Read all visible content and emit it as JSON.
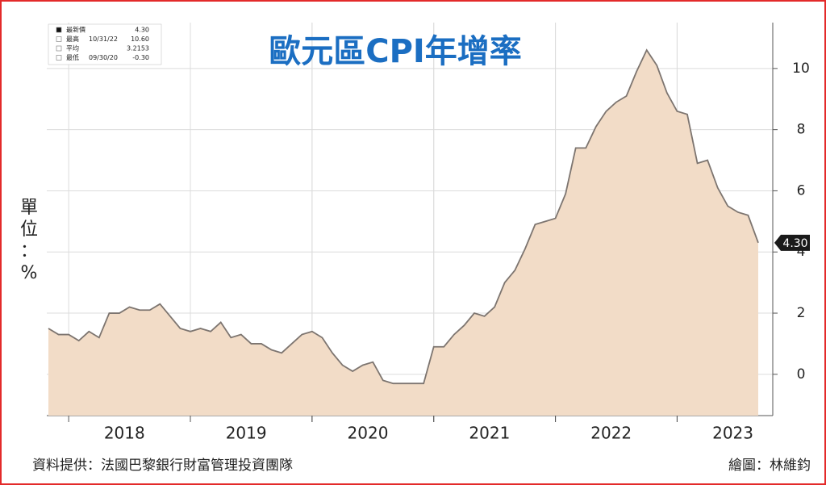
{
  "chart_data": {
    "type": "area",
    "title": "歐元區CPI年增率",
    "y_label": [
      "單",
      "位",
      "：",
      "%"
    ],
    "categories": [
      null,
      null,
      null,
      null,
      null,
      null,
      null,
      null,
      "2018",
      null,
      null,
      null,
      null,
      null,
      null,
      null,
      null,
      null,
      null,
      null,
      "2019",
      null,
      null,
      null,
      null,
      null,
      null,
      null,
      null,
      null,
      null,
      null,
      "2020",
      null,
      null,
      null,
      null,
      null,
      null,
      null,
      null,
      null,
      null,
      null,
      "2021",
      null,
      null,
      null,
      null,
      null,
      null,
      null,
      null,
      null,
      null,
      null,
      "2022",
      null,
      null,
      null,
      null,
      null,
      null,
      null,
      null,
      null,
      null,
      null,
      "2023",
      null,
      null
    ],
    "values": [
      1.5,
      1.3,
      1.3,
      1.1,
      1.4,
      1.2,
      2.0,
      2.0,
      2.2,
      2.1,
      2.1,
      2.3,
      1.9,
      1.5,
      1.4,
      1.5,
      1.4,
      1.7,
      1.2,
      1.3,
      1.0,
      1.0,
      0.8,
      0.7,
      1.0,
      1.3,
      1.4,
      1.2,
      0.7,
      0.3,
      0.1,
      0.3,
      0.4,
      -0.2,
      -0.3,
      -0.3,
      -0.3,
      -0.3,
      0.9,
      0.9,
      1.3,
      1.6,
      2.0,
      1.9,
      2.2,
      3.0,
      3.4,
      4.1,
      4.9,
      5.0,
      5.1,
      5.9,
      7.4,
      7.4,
      8.1,
      8.6,
      8.9,
      9.1,
      9.9,
      10.6,
      10.1,
      9.2,
      8.6,
      8.5,
      6.9,
      7.0,
      6.1,
      5.5,
      5.3,
      5.2,
      4.3
    ],
    "value_labels": [
      null,
      null,
      null,
      null,
      null,
      null,
      null,
      null,
      null,
      null,
      null,
      null,
      null,
      null,
      null,
      null,
      null,
      null,
      null,
      null,
      null,
      null,
      null,
      null,
      null,
      null,
      null,
      null,
      null,
      null,
      null,
      null,
      null,
      null,
      null,
      null,
      null,
      null,
      null,
      null,
      null,
      null,
      null,
      null,
      null,
      null,
      null,
      null,
      null,
      null,
      null,
      null,
      null,
      null,
      null,
      null,
      null,
      null,
      null,
      null,
      null,
      null,
      null,
      null,
      null,
      null,
      null,
      null,
      null,
      null,
      "4.30"
    ],
    "color": "#f2dcc7",
    "line_color": "#7d7570",
    "ylim": [
      -1.35,
      11.5
    ],
    "yticks": [
      0,
      2,
      4,
      6,
      8,
      10
    ],
    "grid": true,
    "stats": [
      [
        "最新價",
        "",
        "4.30"
      ],
      [
        "最高",
        "10/31/22",
        "10.60"
      ],
      [
        "平均",
        "",
        "3.2153"
      ],
      [
        "最低",
        "09/30/20",
        "-0.30"
      ]
    ],
    "source": "資料提供：法國巴黎銀行財富管理投資團隊",
    "credit": "繪圖：林維鈞"
  }
}
